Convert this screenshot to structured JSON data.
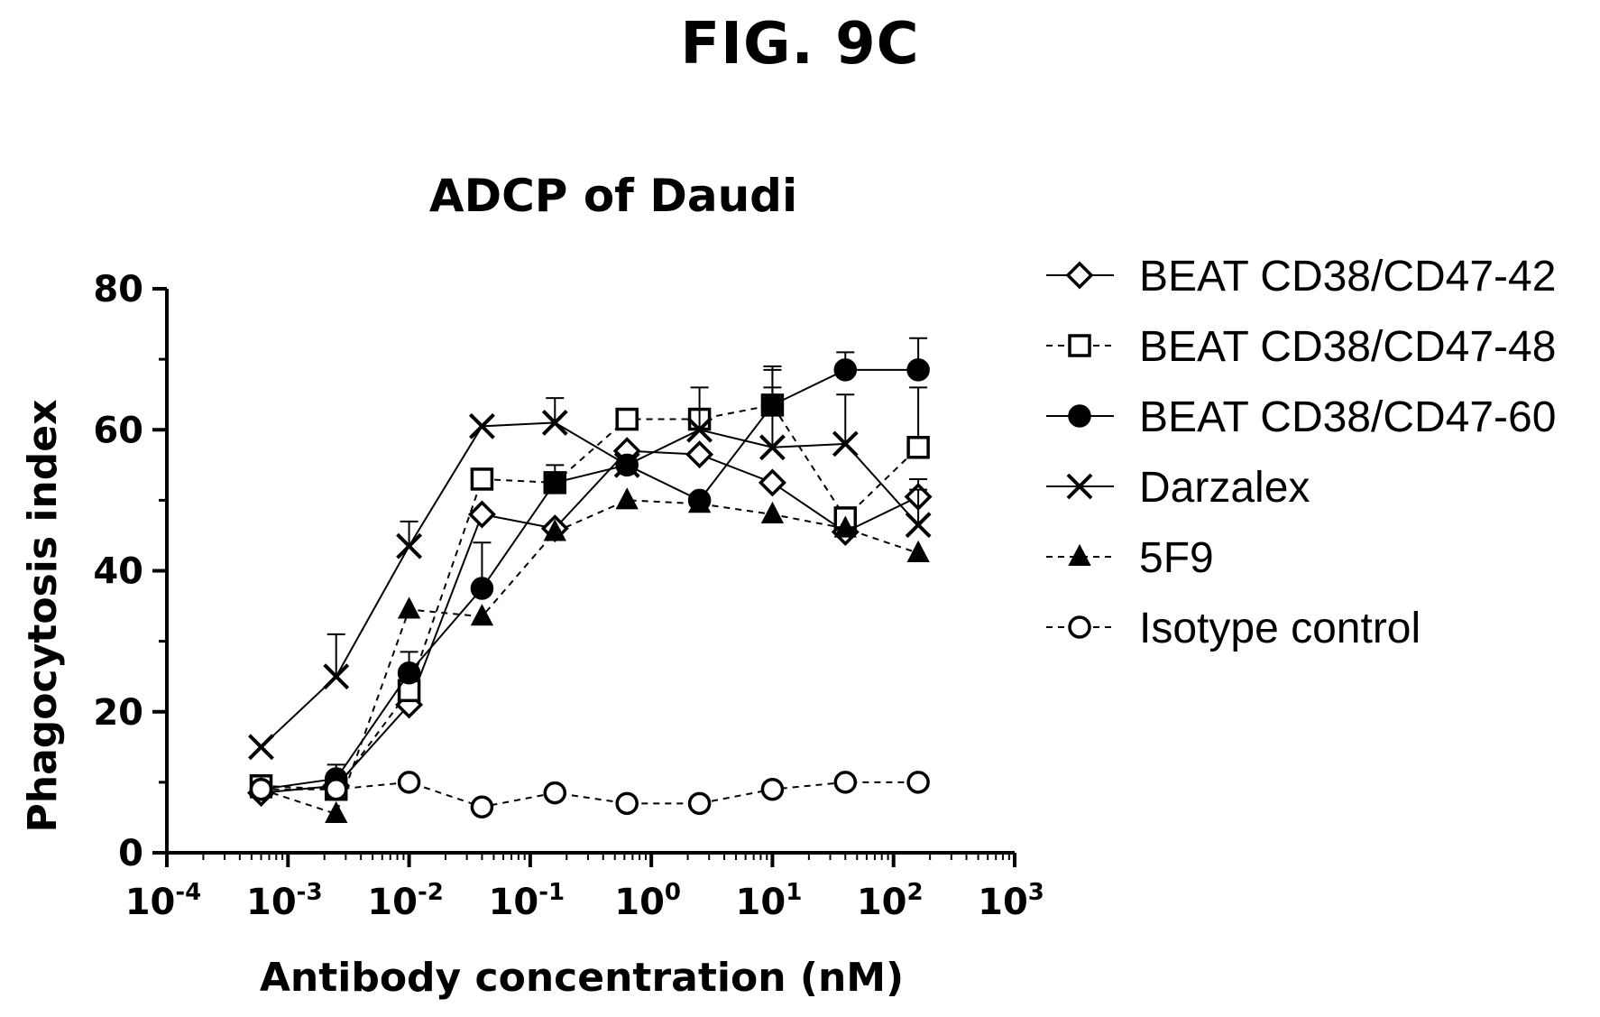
{
  "figure_label": "FIG. 9C",
  "chart_data": {
    "type": "line",
    "title": "ADCP of Daudi",
    "xlabel": "Antibody concentration (nM)",
    "ylabel": "Phagocytosis index",
    "x_scale": "log",
    "xlim": [
      0.0001,
      1000
    ],
    "ylim": [
      0,
      80
    ],
    "y_ticks": [
      "0",
      "20",
      "40",
      "60",
      "80"
    ],
    "x_ticks": [
      {
        "base": "10",
        "exp": "-4",
        "value": 0.0001
      },
      {
        "base": "10",
        "exp": "-3",
        "value": 0.001
      },
      {
        "base": "10",
        "exp": "-2",
        "value": 0.01
      },
      {
        "base": "10",
        "exp": "-1",
        "value": 0.1
      },
      {
        "base": "10",
        "exp": "0",
        "value": 1
      },
      {
        "base": "10",
        "exp": "1",
        "value": 10
      },
      {
        "base": "10",
        "exp": "2",
        "value": 100
      },
      {
        "base": "10",
        "exp": "3",
        "value": 1000
      }
    ],
    "grid": false,
    "legend_position": "right",
    "x": [
      0.0006,
      0.0025,
      0.01,
      0.04,
      0.16,
      0.63,
      2.5,
      10,
      40,
      160
    ],
    "series": [
      {
        "name": "BEAT CD38/CD47-42",
        "marker": "diamond-open",
        "line": "solid",
        "values": [
          8.5,
          9.5,
          21,
          48,
          46,
          57,
          56.5,
          52.5,
          45.5,
          50.5
        ],
        "error": [
          0,
          0,
          0,
          0,
          0,
          0,
          0,
          0,
          0,
          2.5
        ]
      },
      {
        "name": "BEAT CD38/CD47-48",
        "marker": "square-open",
        "line": "dashed",
        "values": [
          9.5,
          9,
          23,
          53,
          52.5,
          61.5,
          61.5,
          63.5,
          47.5,
          57.5
        ],
        "error": [
          0,
          0,
          0,
          0,
          0,
          0,
          0,
          5,
          0,
          8.5
        ]
      },
      {
        "name": "BEAT CD38/CD47-60",
        "marker": "circle-filled",
        "line": "solid",
        "values": [
          9,
          10.5,
          25.5,
          37.5,
          52.5,
          55,
          50,
          63.5,
          68.5,
          68.5
        ],
        "error": [
          0,
          2,
          3,
          6.5,
          2.5,
          0,
          0,
          5.5,
          2.5,
          4.5
        ]
      },
      {
        "name": "Darzalex",
        "marker": "x",
        "line": "solid",
        "values": [
          15,
          25,
          43.5,
          60.5,
          61,
          55,
          60,
          57.5,
          58,
          46.5
        ],
        "error": [
          0,
          6,
          3.5,
          0,
          3.5,
          0,
          6,
          8.5,
          7,
          5
        ]
      },
      {
        "name": "5F9",
        "marker": "triangle-filled",
        "line": "dashed",
        "values": [
          9,
          5.5,
          34.5,
          33.5,
          45.5,
          50,
          49.5,
          48,
          46,
          42.5
        ],
        "error": [
          0,
          0,
          0,
          0,
          0,
          0,
          0,
          0,
          0,
          0
        ]
      },
      {
        "name": "Isotype control",
        "marker": "circle-open",
        "line": "dashed",
        "values": [
          9,
          9,
          10,
          6.5,
          8.5,
          7,
          7,
          9,
          10,
          10
        ],
        "error": [
          0,
          0,
          0,
          0,
          0,
          0,
          0,
          0,
          0,
          0
        ]
      }
    ]
  }
}
